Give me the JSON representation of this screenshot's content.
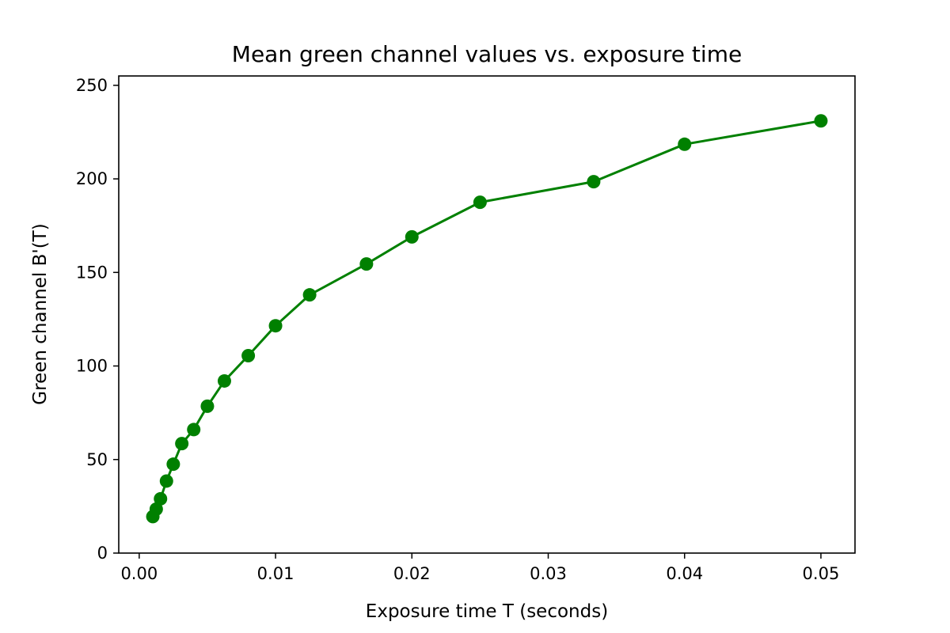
{
  "chart_data": {
    "type": "line",
    "title": "Mean green channel values vs. exposure time",
    "xlabel": "Exposure time T (seconds)",
    "ylabel": "Green channel B'(T)",
    "xlim": [
      -0.0015,
      0.0525
    ],
    "ylim": [
      0,
      255
    ],
    "xticks": [
      0.0,
      0.01,
      0.02,
      0.03,
      0.04,
      0.05
    ],
    "xtick_labels": [
      "0.00",
      "0.01",
      "0.02",
      "0.03",
      "0.04",
      "0.05"
    ],
    "yticks": [
      0,
      50,
      100,
      150,
      200,
      250
    ],
    "ytick_labels": [
      "0",
      "50",
      "100",
      "150",
      "200",
      "250"
    ],
    "grid": false,
    "color": "#008000",
    "marker": "circle",
    "x": [
      0.001,
      0.00125,
      0.0015625,
      0.002,
      0.0025,
      0.003125,
      0.004,
      0.005,
      0.00625,
      0.008,
      0.01,
      0.0125,
      0.0166667,
      0.02,
      0.025,
      0.0333333,
      0.04,
      0.05
    ],
    "y": [
      19.5,
      23.5,
      29,
      38.5,
      47.5,
      58.5,
      66,
      78.5,
      92,
      105.5,
      121.5,
      138,
      154.5,
      169,
      187.5,
      198.5,
      218.5,
      231
    ]
  }
}
